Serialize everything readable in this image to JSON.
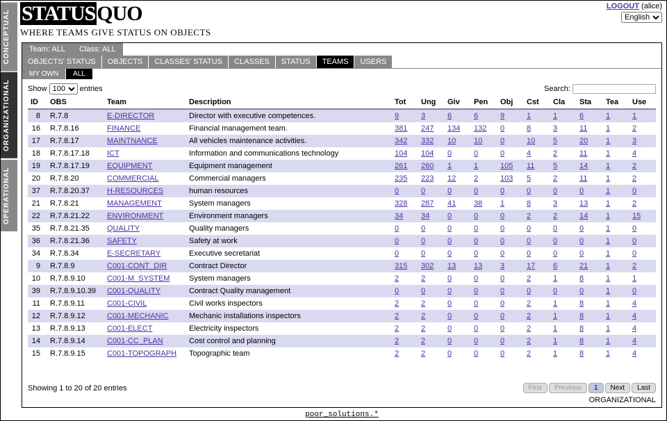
{
  "header": {
    "brand_inv": "STATUS",
    "brand_rest": "QUO",
    "tagline": "WHERE TEAMS GIVE STATUS ON OBJECTS",
    "logout": "LOGOUT",
    "user": "(alice)",
    "language": "English"
  },
  "sidebar": {
    "items": [
      "CONCEPTUAL",
      "ORGANIZATIONAL",
      "OPERATIONAL"
    ],
    "active_index": 1
  },
  "tabs": {
    "context": [
      "Team: ALL",
      "Class: ALL"
    ],
    "main": [
      "OBJECTS' STATUS",
      "OBJECTS",
      "CLASSES' STATUS",
      "CLASSES",
      "STATUS",
      "TEAMS",
      "USERS"
    ],
    "active_index": 5,
    "filters": [
      "MY OWN",
      "ALL"
    ],
    "filter_active_index": 1
  },
  "table": {
    "show_label": "Show",
    "entries_label": "entries",
    "page_size": "100",
    "search_label": "Search:",
    "columns": [
      "ID",
      "OBS",
      "Team",
      "Description",
      "Tot",
      "Ung",
      "Giv",
      "Pen",
      "Obj",
      "Cst",
      "Cla",
      "Sta",
      "Tea",
      "Use"
    ],
    "rows": [
      {
        "id": "8",
        "obs": "R.7.8",
        "team": "E-DIRECTOR",
        "desc": "Director with executive competences.",
        "n": [
          "9",
          "3",
          "6",
          "6",
          "9",
          "1",
          "1",
          "6",
          "1",
          "1"
        ]
      },
      {
        "id": "16",
        "obs": "R.7.8.16",
        "team": "FINANCE",
        "desc": "Financial management team.",
        "n": [
          "381",
          "247",
          "134",
          "132",
          "0",
          "8",
          "3",
          "11",
          "1",
          "2"
        ]
      },
      {
        "id": "17",
        "obs": "R.7.8.17",
        "team": "MAINTNANCE",
        "desc": "All vehicles maintenance activities.",
        "n": [
          "342",
          "332",
          "10",
          "10",
          "0",
          "10",
          "5",
          "20",
          "1",
          "3"
        ]
      },
      {
        "id": "18",
        "obs": "R.7.8.17.18",
        "team": "ICT",
        "desc": "Information and communications technology",
        "n": [
          "104",
          "104",
          "0",
          "0",
          "0",
          "4",
          "2",
          "11",
          "1",
          "4"
        ]
      },
      {
        "id": "19",
        "obs": "R.7.8.17.19",
        "team": "EQUIPMENT",
        "desc": "Equipment management",
        "n": [
          "261",
          "260",
          "1",
          "1",
          "105",
          "11",
          "5",
          "14",
          "1",
          "2"
        ]
      },
      {
        "id": "20",
        "obs": "R.7.8.20",
        "team": "COMMERCIAL",
        "desc": "Commercial managers",
        "n": [
          "235",
          "223",
          "12",
          "2",
          "103",
          "5",
          "2",
          "11",
          "1",
          "2"
        ]
      },
      {
        "id": "37",
        "obs": "R.7.8.20.37",
        "team": "H-RESOURCES",
        "desc": "human resources",
        "n": [
          "0",
          "0",
          "0",
          "0",
          "0",
          "0",
          "0",
          "0",
          "1",
          "0"
        ]
      },
      {
        "id": "21",
        "obs": "R.7.8.21",
        "team": "MANAGEMENT",
        "desc": "System managers",
        "n": [
          "328",
          "287",
          "41",
          "38",
          "1",
          "8",
          "3",
          "13",
          "1",
          "2"
        ]
      },
      {
        "id": "22",
        "obs": "R.7.8.21.22",
        "team": "ENVIRONMENT",
        "desc": "Environment managers",
        "n": [
          "34",
          "34",
          "0",
          "0",
          "0",
          "2",
          "2",
          "14",
          "1",
          "15"
        ]
      },
      {
        "id": "35",
        "obs": "R.7.8.21.35",
        "team": "QUALITY",
        "desc": "Quality managers",
        "n": [
          "0",
          "0",
          "0",
          "0",
          "0",
          "0",
          "0",
          "0",
          "1",
          "0"
        ]
      },
      {
        "id": "36",
        "obs": "R.7.8.21.36",
        "team": "SAFETY",
        "desc": "Safety at work",
        "n": [
          "0",
          "0",
          "0",
          "0",
          "0",
          "0",
          "0",
          "0",
          "1",
          "0"
        ]
      },
      {
        "id": "34",
        "obs": "R.7.8.34",
        "team": "E-SECRETARY",
        "desc": "Executive secretariat",
        "n": [
          "0",
          "0",
          "0",
          "0",
          "0",
          "0",
          "0",
          "0",
          "1",
          "0"
        ]
      },
      {
        "id": "9",
        "obs": "R.7.8.9",
        "team": "C001-CONT_DIR",
        "desc": "Contract Director",
        "n": [
          "315",
          "302",
          "13",
          "13",
          "3",
          "17",
          "6",
          "21",
          "1",
          "2"
        ]
      },
      {
        "id": "10",
        "obs": "R.7.8.9.10",
        "team": "C001-M_SYSTEM",
        "desc": "System managers",
        "n": [
          "2",
          "2",
          "0",
          "0",
          "0",
          "2",
          "1",
          "8",
          "1",
          "1"
        ]
      },
      {
        "id": "39",
        "obs": "R.7.8.9.10.39",
        "team": "C001-QUALITY",
        "desc": "Contract Quality management",
        "n": [
          "0",
          "0",
          "0",
          "0",
          "0",
          "0",
          "0",
          "0",
          "1",
          "0"
        ]
      },
      {
        "id": "11",
        "obs": "R.7.8.9.11",
        "team": "C001-CIVIL",
        "desc": "Civil works inspectors",
        "n": [
          "2",
          "2",
          "0",
          "0",
          "0",
          "2",
          "1",
          "8",
          "1",
          "4"
        ]
      },
      {
        "id": "12",
        "obs": "R.7.8.9.12",
        "team": "C001-MECHANIC",
        "desc": "Mechanic installations inspectors",
        "n": [
          "2",
          "2",
          "0",
          "0",
          "0",
          "2",
          "1",
          "8",
          "1",
          "4"
        ]
      },
      {
        "id": "13",
        "obs": "R.7.8.9.13",
        "team": "C001-ELECT",
        "desc": "Electricity inspectors",
        "n": [
          "2",
          "2",
          "0",
          "0",
          "0",
          "2",
          "1",
          "8",
          "1",
          "4"
        ]
      },
      {
        "id": "14",
        "obs": "R.7.8.9.14",
        "team": "C001-CC_PLAN",
        "desc": "Cost control and planning",
        "n": [
          "2",
          "2",
          "0",
          "0",
          "0",
          "2",
          "1",
          "8",
          "1",
          "4"
        ]
      },
      {
        "id": "15",
        "obs": "R.7.8.9.15",
        "team": "C001-TOPOGRAPH",
        "desc": "Topographic team",
        "n": [
          "2",
          "2",
          "0",
          "0",
          "0",
          "2",
          "1",
          "8",
          "1",
          "4"
        ]
      }
    ],
    "footer_info": "Showing 1 to 20 of 20 entries",
    "pager": [
      "First",
      "Previous",
      "1",
      "Next",
      "Last"
    ],
    "section_label": "ORGANIZATIONAL"
  },
  "footer_text": "poor_solutions.*"
}
